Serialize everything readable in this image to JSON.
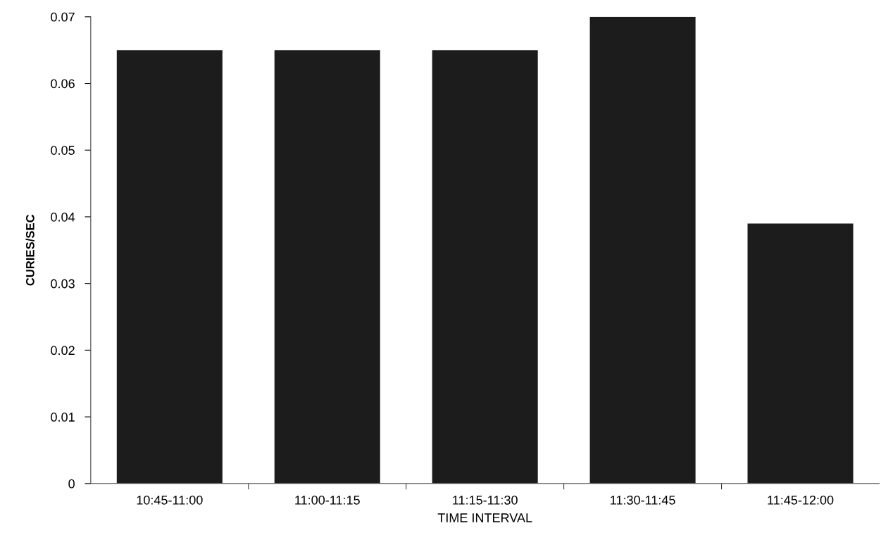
{
  "chart_data": {
    "type": "bar",
    "xlabel": "TIME INTERVAL",
    "ylabel": "CURIES/SEC",
    "categories": [
      "10:45-11:00",
      "11:00-11:15",
      "11:15-11:30",
      "11:30-11:45",
      "11:45-12:00"
    ],
    "values": [
      0.065,
      0.065,
      0.065,
      0.07,
      0.039
    ],
    "color": "#1c1c1c",
    "ylim": [
      0,
      0.07
    ],
    "yticks": [
      0,
      0.01,
      0.02,
      0.03,
      0.04,
      0.05,
      0.06,
      0.07
    ],
    "grid": false
  }
}
